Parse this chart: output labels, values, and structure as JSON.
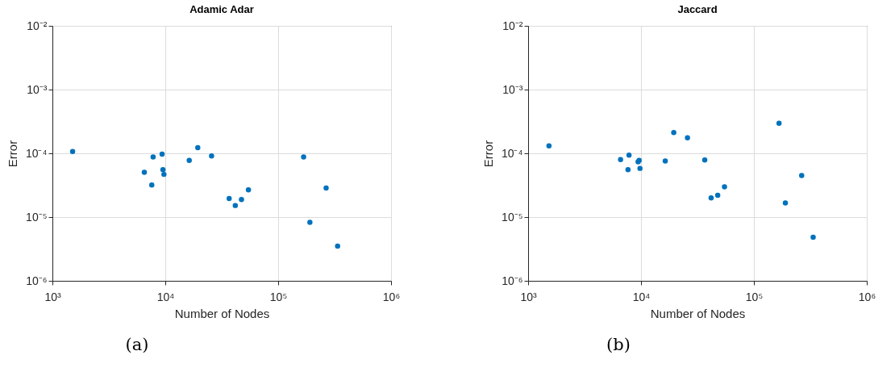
{
  "chart_data": [
    {
      "type": "scatter",
      "title": "Adamic Adar",
      "xlabel": "Number of Nodes",
      "ylabel": "Error",
      "log": "xy",
      "grid": true,
      "marker": "circle",
      "annotations": [
        "(a)"
      ],
      "xlim": [
        1000,
        1000000
      ],
      "xticks": [
        {
          "value": 1000,
          "label": "10³"
        },
        {
          "value": 10000,
          "label": "10⁴"
        },
        {
          "value": 100000,
          "label": "10⁵"
        },
        {
          "value": 1000000,
          "label": "10⁶"
        }
      ],
      "ylim": [
        1e-06,
        0.01
      ],
      "yticks": [
        {
          "value": 1e-06,
          "label": "10⁻⁶"
        },
        {
          "value": 1e-05,
          "label": "10⁻⁵"
        },
        {
          "value": 0.0001,
          "label": "10⁻⁴"
        },
        {
          "value": 0.001,
          "label": "10⁻³"
        },
        {
          "value": 0.01,
          "label": "10⁻²"
        }
      ],
      "x": [
        1510,
        6520,
        7800,
        7590,
        9370,
        9530,
        9730,
        16300,
        19400,
        25700,
        36800,
        41700,
        47300,
        54500,
        168000,
        191000,
        266000,
        336000
      ],
      "series": [
        {
          "color": "#0072bd",
          "values": [
            0.000107,
            5.03e-05,
            8.75e-05,
            3.19e-05,
            9.72e-05,
            5.55e-05,
            4.67e-05,
            7.73e-05,
            0.000123,
            9.09e-05,
            1.96e-05,
            1.52e-05,
            1.89e-05,
            2.67e-05,
            8.75e-05,
            8.26e-06,
            2.85e-05,
            3.51e-06
          ]
        }
      ]
    },
    {
      "type": "scatter",
      "title": "Jaccard",
      "xlabel": "Number of Nodes",
      "ylabel": "Error",
      "log": "xy",
      "grid": true,
      "marker": "circle",
      "annotations": [
        "(b)"
      ],
      "xlim": [
        1000,
        1000000
      ],
      "xticks": [
        {
          "value": 1000,
          "label": "10³"
        },
        {
          "value": 10000,
          "label": "10⁴"
        },
        {
          "value": 100000,
          "label": "10⁵"
        },
        {
          "value": 1000000,
          "label": "10⁶"
        }
      ],
      "ylim": [
        1e-06,
        0.01
      ],
      "yticks": [
        {
          "value": 1e-06,
          "label": "10⁻⁶"
        },
        {
          "value": 1e-05,
          "label": "10⁻⁵"
        },
        {
          "value": 0.0001,
          "label": "10⁻⁴"
        },
        {
          "value": 0.001,
          "label": "10⁻³"
        },
        {
          "value": 0.01,
          "label": "10⁻²"
        }
      ],
      "x": [
        1530,
        6590,
        7830,
        7670,
        9420,
        9630,
        9790,
        16400,
        19500,
        25800,
        36700,
        41800,
        47800,
        54900,
        167000,
        190000,
        265000,
        335000
      ],
      "series": [
        {
          "color": "#0072bd",
          "values": [
            0.000131,
            7.96e-05,
            9.35e-05,
            5.54e-05,
            7.38e-05,
            7.73e-05,
            5.81e-05,
            7.59e-05,
            0.000212,
            0.000175,
            7.88e-05,
            2e-05,
            2.2e-05,
            2.98e-05,
            0.000296,
            1.66e-05,
            4.5e-05,
            4.81e-06
          ]
        }
      ]
    }
  ]
}
